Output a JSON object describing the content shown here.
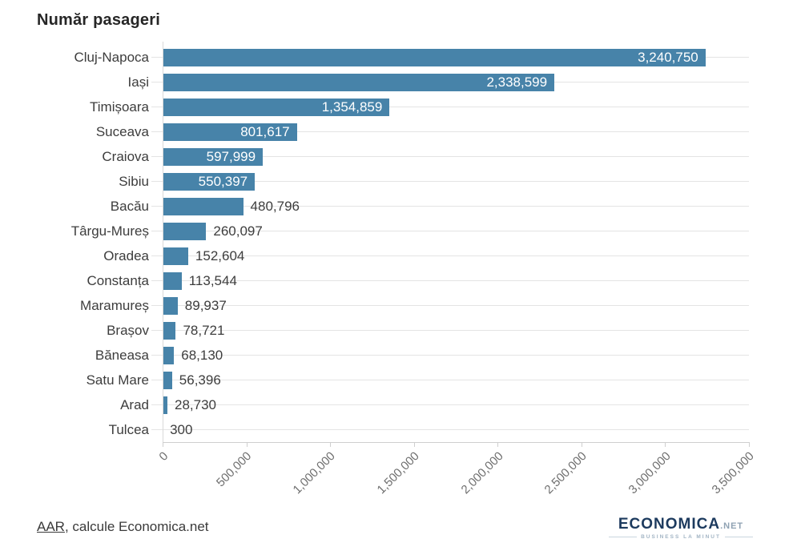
{
  "title": "Număr pasageri",
  "chart_data": {
    "type": "bar",
    "orientation": "horizontal",
    "title": "Număr pasageri",
    "categories": [
      "Cluj-Napoca",
      "Iași",
      "Timișoara",
      "Suceava",
      "Craiova",
      "Sibiu",
      "Bacău",
      "Târgu-Mureș",
      "Oradea",
      "Constanța",
      "Maramureș",
      "Brașov",
      "Băneasa",
      "Satu Mare",
      "Arad",
      "Tulcea"
    ],
    "values": [
      3240750,
      2338599,
      1354859,
      801617,
      597999,
      550397,
      480796,
      260097,
      152604,
      113544,
      89937,
      78721,
      68130,
      56396,
      28730,
      300
    ],
    "value_labels": [
      "3,240,750",
      "2,338,599",
      "1,354,859",
      "801,617",
      "597,999",
      "550,397",
      "480,796",
      "260,097",
      "152,604",
      "113,544",
      "89,937",
      "78,721",
      "68,130",
      "56,396",
      "28,730",
      "300"
    ],
    "xlim": [
      0,
      3500000
    ],
    "x_ticks": [
      0,
      500000,
      1000000,
      1500000,
      2000000,
      2500000,
      3000000,
      3500000
    ],
    "x_tick_labels": [
      "0",
      "500,000",
      "1,000,000",
      "1,500,000",
      "2,000,000",
      "2,500,000",
      "3,000,000",
      "3,500,000"
    ],
    "grid": "horizontal-row-lines",
    "legend": "none",
    "xlabel": "",
    "ylabel": ""
  },
  "colors": {
    "bar": "#4783a9",
    "title_text": "#262626",
    "label_text": "#3d3d3d",
    "tick_text": "#6e6e6e",
    "grid_line": "#e4e4e4",
    "axis_line": "#cfcfcf",
    "inside_value_text": "#ffffff",
    "logo_navy": "#1c3a5e",
    "logo_light": "#8fa2b3"
  },
  "footer": {
    "source_link": "AAR",
    "source_text": ", calcule Economica.net"
  },
  "logo": {
    "brand": "ECONOMICA",
    "brand_suffix": ".NET",
    "tagline": "BUSINESS LA MINUT"
  }
}
